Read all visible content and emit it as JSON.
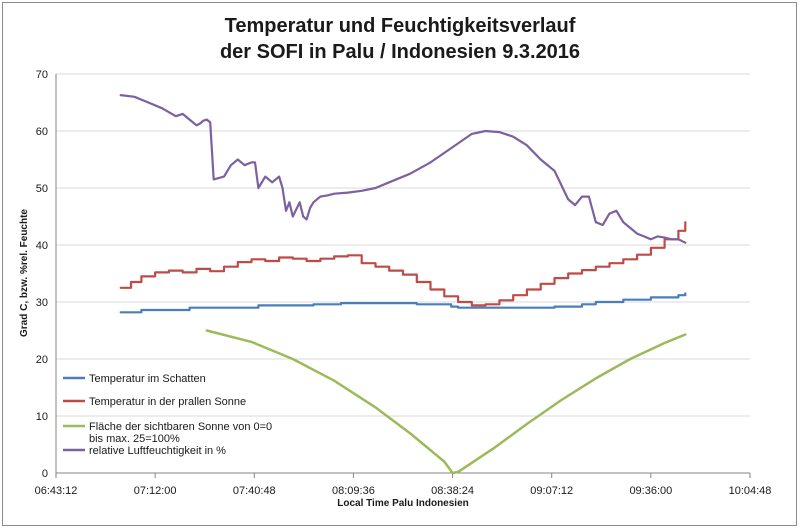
{
  "chart_data": {
    "type": "line",
    "title_line1": "Temperatur und Feuchtigkeitsverlauf",
    "title_line2": "der SOFI in Palu / Indonesien 9.3.2016",
    "xlabel": "Local Time Palu Indonesien",
    "ylabel": "Grad C, bzw.  %rel. Feuchte",
    "ylim": [
      0,
      70
    ],
    "yticks": [
      0,
      10,
      20,
      30,
      40,
      50,
      60,
      70
    ],
    "xlim": [
      "06:43:12",
      "10:04:48"
    ],
    "xticks": [
      "06:43:12",
      "07:12:00",
      "07:40:48",
      "08:09:36",
      "08:38:24",
      "09:07:12",
      "09:36:00",
      "10:04:48"
    ],
    "grid": "horizontal",
    "legend_position": "lower-left",
    "series": [
      {
        "name": "Temperatur im Schatten",
        "color": "#4a7ebb",
        "style": "step",
        "x": [
          "07:02:00",
          "07:08:00",
          "07:20:00",
          "07:22:00",
          "07:38:00",
          "07:42:00",
          "07:58:00",
          "08:06:00",
          "08:28:00",
          "08:38:00",
          "08:40:00",
          "08:44:00",
          "09:08:00",
          "09:16:00",
          "09:20:00",
          "09:28:00",
          "09:36:00",
          "09:44:00",
          "09:46:00"
        ],
        "y": [
          28.2,
          28.6,
          28.6,
          29.0,
          29.0,
          29.4,
          29.6,
          29.8,
          29.6,
          29.2,
          29.0,
          29.0,
          29.2,
          29.6,
          30.0,
          30.4,
          30.8,
          31.2,
          31.5
        ]
      },
      {
        "name": "Temperatur in der prallen Sonne",
        "color": "#be4b48",
        "style": "step",
        "x": [
          "07:02:00",
          "07:05:00",
          "07:08:00",
          "07:12:00",
          "07:16:00",
          "07:20:00",
          "07:24:00",
          "07:28:00",
          "07:32:00",
          "07:36:00",
          "07:40:00",
          "07:44:00",
          "07:48:00",
          "07:52:00",
          "07:56:00",
          "08:00:00",
          "08:04:00",
          "08:08:00",
          "08:12:00",
          "08:16:00",
          "08:20:00",
          "08:24:00",
          "08:28:00",
          "08:32:00",
          "08:36:00",
          "08:40:00",
          "08:44:00",
          "08:48:00",
          "08:52:00",
          "08:56:00",
          "09:00:00",
          "09:04:00",
          "09:08:00",
          "09:12:00",
          "09:16:00",
          "09:20:00",
          "09:24:00",
          "09:28:00",
          "09:32:00",
          "09:36:00",
          "09:40:00",
          "09:44:00",
          "09:46:00"
        ],
        "y": [
          32.5,
          33.5,
          34.5,
          35.2,
          35.5,
          35.2,
          35.8,
          35.4,
          36.2,
          37.0,
          37.5,
          37.2,
          37.8,
          37.6,
          37.2,
          37.6,
          38.0,
          38.2,
          36.8,
          36.2,
          35.5,
          34.8,
          33.5,
          32.2,
          31.0,
          30.0,
          29.4,
          29.6,
          30.3,
          31.2,
          32.2,
          33.2,
          34.2,
          35.0,
          35.6,
          36.2,
          36.8,
          37.5,
          38.3,
          39.5,
          41.0,
          42.5,
          44.0
        ]
      },
      {
        "name": "Fläche der sichtbaren Sonne von 0=0 bis max. 25=100%",
        "legend_line1": "Fläche der sichtbaren Sonne von 0=0",
        "legend_line2": "bis max. 25=100%",
        "color": "#9bbb59",
        "style": "smooth",
        "x": [
          "07:27:00",
          "07:40:00",
          "07:52:00",
          "08:04:00",
          "08:16:00",
          "08:26:00",
          "08:36:00",
          "08:38:24",
          "08:40:00",
          "08:50:00",
          "09:00:00",
          "09:10:00",
          "09:20:00",
          "09:30:00",
          "09:40:00",
          "09:46:00"
        ],
        "y": [
          25.0,
          23.0,
          20.0,
          16.2,
          11.5,
          7.0,
          2.0,
          0.0,
          0.2,
          4.2,
          8.6,
          12.8,
          16.6,
          20.0,
          22.8,
          24.3
        ]
      },
      {
        "name": "relative Luftfeuchtigkeit in %",
        "color": "#7d60a0",
        "style": "jagged",
        "x": [
          "07:02:00",
          "07:06:00",
          "07:10:00",
          "07:14:00",
          "07:18:00",
          "07:20:00",
          "07:22:00",
          "07:24:00",
          "07:25:00",
          "07:26:00",
          "07:27:00",
          "07:28:00",
          "07:29:00",
          "07:32:00",
          "07:34:00",
          "07:36:00",
          "07:38:00",
          "07:40:00",
          "07:41:00",
          "07:42:00",
          "07:44:00",
          "07:46:00",
          "07:48:00",
          "07:49:00",
          "07:50:00",
          "07:51:00",
          "07:52:00",
          "07:54:00",
          "07:55:00",
          "07:56:00",
          "07:57:00",
          "07:58:00",
          "07:59:00",
          "08:00:00",
          "08:02:00",
          "08:04:00",
          "08:08:00",
          "08:12:00",
          "08:16:00",
          "08:20:00",
          "08:26:00",
          "08:32:00",
          "08:38:00",
          "08:44:00",
          "08:48:00",
          "08:52:00",
          "08:56:00",
          "09:00:00",
          "09:04:00",
          "09:08:00",
          "09:12:00",
          "09:14:00",
          "09:16:00",
          "09:18:00",
          "09:20:00",
          "09:22:00",
          "09:24:00",
          "09:26:00",
          "09:28:00",
          "09:30:00",
          "09:32:00",
          "09:34:00",
          "09:36:00",
          "09:38:00",
          "09:40:00",
          "09:42:00",
          "09:44:00",
          "09:46:00"
        ],
        "y": [
          66.3,
          66.0,
          65.0,
          64.0,
          62.6,
          63.0,
          62.0,
          61.0,
          61.3,
          61.8,
          62.0,
          61.5,
          51.5,
          52.0,
          54.0,
          55.0,
          54.0,
          54.5,
          54.5,
          50.0,
          52.0,
          51.0,
          52.0,
          50.0,
          46.0,
          47.5,
          45.0,
          47.5,
          45.0,
          44.5,
          46.5,
          47.5,
          48.0,
          48.5,
          48.7,
          49.0,
          49.2,
          49.5,
          50.0,
          51.0,
          52.5,
          54.5,
          57.0,
          59.5,
          60.0,
          59.8,
          59.0,
          57.5,
          55.0,
          53.0,
          48.0,
          47.0,
          48.5,
          48.5,
          44.0,
          43.5,
          45.5,
          46.0,
          44.0,
          43.0,
          42.0,
          41.5,
          41.0,
          41.5,
          41.3,
          41.0,
          41.0,
          40.4
        ]
      }
    ]
  }
}
